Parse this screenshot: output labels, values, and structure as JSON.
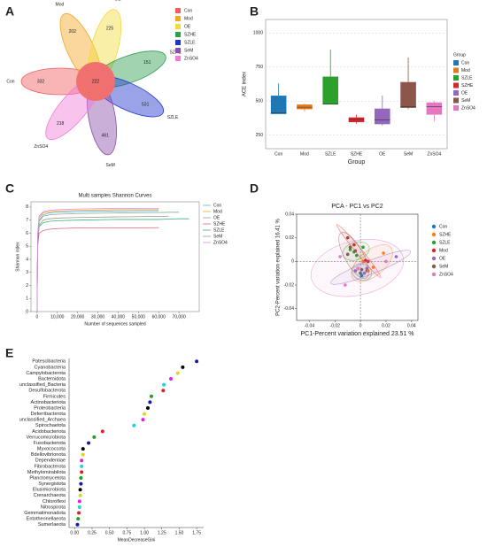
{
  "chart_data": [
    {
      "type": "flower",
      "label": "A",
      "categories": [
        "Con",
        "Mod",
        "OE",
        "SZHE",
        "SZLE",
        "SeM",
        "ZnSO4"
      ],
      "values": [
        332,
        202,
        225,
        151,
        531,
        461,
        218
      ],
      "center": 222,
      "colors": [
        "#f25c5c",
        "#f5a623",
        "#f2dc3c",
        "#2e9e4f",
        "#2233cc",
        "#8a4fa8",
        "#f07ad8"
      ]
    },
    {
      "type": "box",
      "label": "B",
      "ylabel": "ACE index",
      "xlabel": "Group",
      "legend_title": "Group",
      "categories": [
        "Con",
        "Mod",
        "SZLE",
        "SZHE",
        "OE",
        "SeM",
        "ZnSO4"
      ],
      "min": [
        405,
        425,
        475,
        335,
        320,
        440,
        350
      ],
      "q1": [
        405,
        440,
        475,
        345,
        330,
        450,
        400
      ],
      "median": [
        415,
        455,
        480,
        365,
        360,
        460,
        460
      ],
      "q3": [
        540,
        475,
        680,
        380,
        445,
        640,
        490
      ],
      "max": [
        630,
        480,
        880,
        400,
        540,
        820,
        500
      ],
      "colors": [
        "#1f77b4",
        "#e07b1f",
        "#2ca02c",
        "#d62728",
        "#9467bd",
        "#8c564b",
        "#e377c2"
      ],
      "ylim": [
        150,
        1100
      ],
      "yticks": [
        250,
        500,
        750,
        1000
      ],
      "grid": true
    },
    {
      "type": "line",
      "label": "C",
      "title": "Multi samples Shannon Curves",
      "ylabel": "Shannon index",
      "xlabel": "Number of sequences sampled",
      "x": [
        0,
        300,
        1000,
        3000,
        6000,
        10000,
        20000,
        40000,
        60000,
        65000,
        70000,
        75000
      ],
      "series": [
        {
          "name": "Con",
          "color": "#5ab4e5",
          "values": [
            0,
            5.6,
            7.0,
            7.4,
            7.55,
            7.6,
            7.65,
            7.7,
            7.72,
            null,
            null,
            null
          ]
        },
        {
          "name": "Mod",
          "color": "#f5a623",
          "values": [
            0,
            5.8,
            7.2,
            7.55,
            7.65,
            7.7,
            7.75,
            7.8,
            7.8,
            null,
            null,
            null
          ]
        },
        {
          "name": "OE",
          "color": "#8aa88a",
          "values": [
            0,
            5.4,
            6.9,
            7.3,
            7.4,
            7.45,
            7.5,
            7.55,
            7.58,
            7.6,
            7.6,
            null
          ]
        },
        {
          "name": "SZHE",
          "color": "#e8607a",
          "values": [
            0,
            5.0,
            6.0,
            6.2,
            6.3,
            6.35,
            6.4,
            6.4,
            6.42,
            null,
            null,
            null
          ]
        },
        {
          "name": "SZLE",
          "color": "#3cb371",
          "values": [
            0,
            5.3,
            6.5,
            6.8,
            6.9,
            6.95,
            7.0,
            7.05,
            7.05,
            7.08,
            7.1,
            7.1
          ]
        },
        {
          "name": "SeM",
          "color": "#999999",
          "values": [
            0,
            5.2,
            6.6,
            7.0,
            7.1,
            7.15,
            7.2,
            7.25,
            7.28,
            7.3,
            null,
            null
          ]
        },
        {
          "name": "ZnSO4",
          "color": "#d98ee0",
          "values": [
            0,
            5.9,
            7.3,
            7.65,
            7.75,
            7.8,
            7.85,
            7.9,
            7.9,
            null,
            null,
            null
          ]
        }
      ],
      "xlim": [
        -3000,
        80000
      ],
      "xticks": [
        0,
        {
          "value": 10000,
          "label": "10,000"
        },
        {
          "value": 20000,
          "label": "20,000"
        },
        {
          "value": 30000,
          "label": "30,000"
        },
        {
          "value": 40000,
          "label": "40,000"
        },
        {
          "value": 50000,
          "label": "50,000"
        },
        {
          "value": 60000,
          "label": "60,000"
        },
        {
          "value": 70000,
          "label": "70,000"
        }
      ],
      "ylim": [
        0,
        8.4
      ],
      "yticks": [
        0,
        1,
        2,
        3,
        4,
        5,
        6,
        7,
        8
      ]
    },
    {
      "type": "scatter",
      "label": "D",
      "title": "PCA - PC1 vs PC2",
      "xlabel": "PC1-Percent variation explained 23.51 %",
      "ylabel": "PC2-Percent variation explained 16.41 %",
      "series": [
        {
          "name": "Con",
          "color": "#1f77b4",
          "x": [
            0.0,
            0.005,
            -0.002,
            0.001
          ],
          "y": [
            -0.01,
            -0.008,
            -0.006,
            -0.012
          ]
        },
        {
          "name": "SZHE",
          "color": "#ff7f0e",
          "x": [
            0.018,
            0.006,
            0.002,
            0.01
          ],
          "y": [
            0.007,
            -0.008,
            0.0,
            -0.005
          ]
        },
        {
          "name": "SZLE",
          "color": "#2ca02c",
          "x": [
            -0.005,
            -0.008,
            -0.003,
            0.002
          ],
          "y": [
            0.008,
            0.01,
            0.005,
            0.012
          ]
        },
        {
          "name": "Mod",
          "color": "#d62728",
          "x": [
            -0.01,
            -0.005,
            0.004,
            0.006
          ],
          "y": [
            0.02,
            0.014,
            0.001,
            0.0
          ]
        },
        {
          "name": "OE",
          "color": "#9467bd",
          "x": [
            0.028,
            -0.004,
            0.003,
            0.005
          ],
          "y": [
            0.004,
            -0.008,
            -0.01,
            -0.006
          ]
        },
        {
          "name": "SeM",
          "color": "#8c564b",
          "x": [
            -0.008,
            -0.004,
            0.001,
            -0.01
          ],
          "y": [
            0.012,
            0.009,
            -0.007,
            0.006
          ]
        },
        {
          "name": "ZnSO4",
          "color": "#e377c2",
          "x": [
            -0.016,
            -0.012,
            0.02,
            -0.002
          ],
          "y": [
            0.004,
            -0.02,
            0.0,
            -0.006
          ]
        }
      ],
      "xlim": [
        -0.05,
        0.045
      ],
      "xticks": [
        -0.04,
        -0.02,
        0,
        0.02,
        0.04
      ],
      "ylim": [
        -0.05,
        0.04
      ],
      "yticks": [
        -0.04,
        -0.02,
        0,
        0.02,
        0.04
      ]
    },
    {
      "type": "dot",
      "label": "E",
      "xlabel": "MeanDecreaseGini",
      "categories": [
        "Patescibacteria",
        "Cyanobacteria",
        "Campylobacterota",
        "Bacteroidota",
        "unclassified_Bacteria",
        "Desulfobacterota",
        "Firmicutes",
        "Actinobacteriota",
        "Proteobacteria",
        "Deferribacterota",
        "unclassified_Archaea",
        "Spirochaetota",
        "Acidobacteriota",
        "Verrucomicrobiota",
        "Fusobacteriota",
        "Myxococcota",
        "Bdellovibrionota",
        "Dependentiae",
        "Fibrobacterota",
        "Methylomirabilota",
        "Planctomycetota",
        "Synergistota",
        "Elusimicrobiota",
        "Crenarchaeota",
        "Chloroflexi",
        "Nitrospirota",
        "Gemmatimonadota",
        "Entotheonellaeota",
        "Sumerlaeota"
      ],
      "values": [
        1.75,
        1.55,
        1.48,
        1.38,
        1.28,
        1.27,
        1.1,
        1.08,
        1.05,
        1.0,
        0.98,
        0.85,
        0.4,
        0.28,
        0.2,
        0.12,
        0.12,
        0.1,
        0.1,
        0.1,
        0.09,
        0.09,
        0.08,
        0.08,
        0.07,
        0.07,
        0.06,
        0.05,
        0.04
      ],
      "colors": [
        "#1a1aa0",
        "#000000",
        "#e6d020",
        "#e020e0",
        "#20d0e0",
        "#e02020",
        "#20a020",
        "#1a1aa0",
        "#000000",
        "#e6d020",
        "#e020e0",
        "#20d0e0",
        "#e02020",
        "#20a020",
        "#1a1aa0",
        "#000000",
        "#e6d020",
        "#e020e0",
        "#20d0e0",
        "#e02020",
        "#20a020",
        "#1a1aa0",
        "#000000",
        "#e6d020",
        "#e020e0",
        "#20d0e0",
        "#e02020",
        "#20a020",
        "#1a1aa0"
      ],
      "xlim": [
        -0.08,
        1.85
      ],
      "xticks": [
        {
          "value": 0,
          "label": "0.00"
        },
        {
          "value": 0.25,
          "label": "0.25"
        },
        {
          "value": 0.5,
          "label": "0.50"
        },
        {
          "value": 0.75,
          "label": "0.75"
        },
        {
          "value": 1,
          "label": "1.00"
        },
        {
          "value": 1.25,
          "label": "1.25"
        },
        {
          "value": 1.5,
          "label": "1.50"
        },
        {
          "value": 1.75,
          "label": "1.75"
        }
      ]
    }
  ]
}
